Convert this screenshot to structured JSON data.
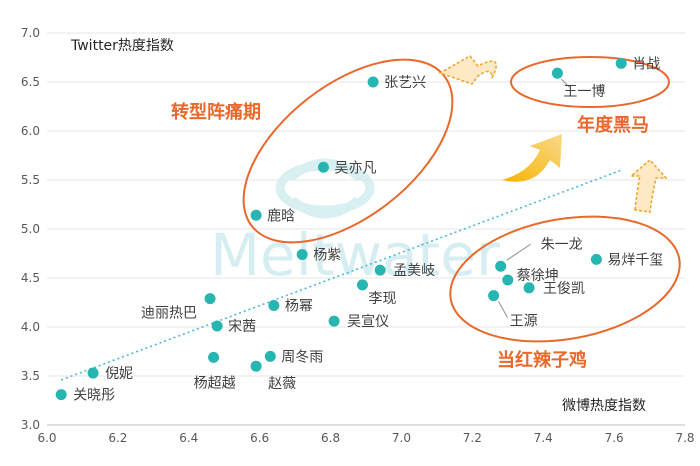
{
  "chart_data": {
    "type": "scatter",
    "x_axis_title": "微博热度指数",
    "y_axis_title": "Twitter热度指数",
    "xlim": [
      6.0,
      7.8
    ],
    "ylim": [
      3.0,
      7.0
    ],
    "x_ticks": [
      "6.0",
      "6.2",
      "6.4",
      "6.6",
      "6.8",
      "7.0",
      "7.2",
      "7.4",
      "7.6",
      "7.8"
    ],
    "y_ticks": [
      "3.0",
      "3.5",
      "4.0",
      "4.5",
      "5.0",
      "5.5",
      "6.0",
      "6.5",
      "7.0"
    ],
    "grid": "horizontal",
    "trendline": {
      "style": "dotted",
      "x": [
        6.04,
        7.62
      ],
      "y": [
        3.46,
        5.6
      ]
    },
    "point_color": "#26b5b1",
    "points": [
      {
        "name": "肖战",
        "x": 7.62,
        "y": 6.69
      },
      {
        "name": "王一博",
        "x": 7.44,
        "y": 6.59
      },
      {
        "name": "张艺兴",
        "x": 6.92,
        "y": 6.5
      },
      {
        "name": "吴亦凡",
        "x": 6.78,
        "y": 5.63
      },
      {
        "name": "鹿晗",
        "x": 6.59,
        "y": 5.14
      },
      {
        "name": "杨紫",
        "x": 6.72,
        "y": 4.74
      },
      {
        "name": "孟美岐",
        "x": 6.94,
        "y": 4.58
      },
      {
        "name": "李现",
        "x": 6.89,
        "y": 4.43
      },
      {
        "name": "迪丽热巴",
        "x": 6.46,
        "y": 4.29
      },
      {
        "name": "杨幂",
        "x": 6.64,
        "y": 4.22
      },
      {
        "name": "吴宣仪",
        "x": 6.81,
        "y": 4.06
      },
      {
        "name": "宋茜",
        "x": 6.48,
        "y": 4.01
      },
      {
        "name": "杨超越",
        "x": 6.47,
        "y": 3.69
      },
      {
        "name": "周冬雨",
        "x": 6.63,
        "y": 3.7
      },
      {
        "name": "赵薇",
        "x": 6.59,
        "y": 3.6
      },
      {
        "name": "倪妮",
        "x": 6.13,
        "y": 3.53
      },
      {
        "name": "关晓彤",
        "x": 6.04,
        "y": 3.31
      },
      {
        "name": "朱一龙",
        "x": 7.28,
        "y": 4.62
      },
      {
        "name": "蔡徐坤",
        "x": 7.3,
        "y": 4.48
      },
      {
        "name": "易烊千玺",
        "x": 7.55,
        "y": 4.69
      },
      {
        "name": "王俊凯",
        "x": 7.36,
        "y": 4.4
      },
      {
        "name": "王源",
        "x": 7.26,
        "y": 4.32
      }
    ],
    "annotations": [
      {
        "text": "转型阵痛期",
        "color": "#e8692c"
      },
      {
        "text": "年度黑马",
        "color": "#e8692c"
      },
      {
        "text": "当红辣子鸡",
        "color": "#e8692c"
      }
    ],
    "watermark": "Meltwater"
  }
}
